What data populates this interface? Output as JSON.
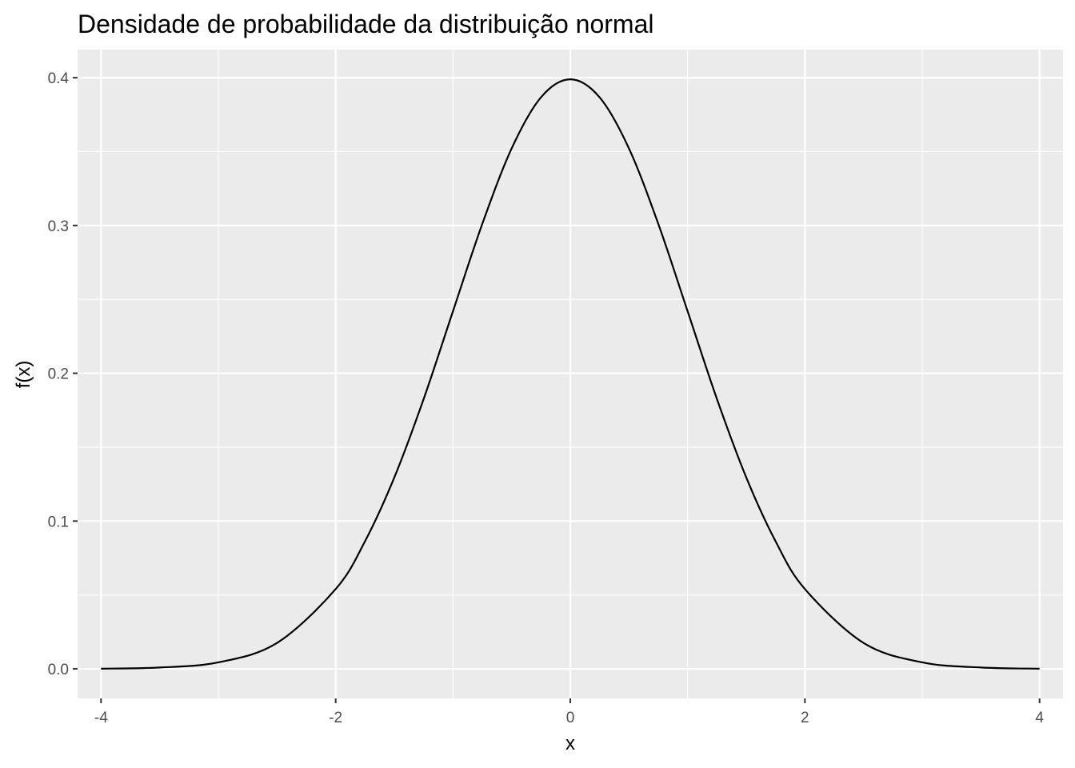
{
  "chart_data": {
    "type": "line",
    "title": "Densidade de probabilidade da distribuição normal",
    "xlabel": "x",
    "ylabel": "f(x)",
    "xlim": [
      -4.2,
      4.2
    ],
    "ylim": [
      -0.02,
      0.419
    ],
    "x_ticks": [
      -4,
      -2,
      0,
      2,
      4
    ],
    "x_tick_labels": [
      "-4",
      "-2",
      "0",
      "2",
      "4"
    ],
    "y_ticks": [
      0.0,
      0.1,
      0.2,
      0.3,
      0.4
    ],
    "y_tick_labels": [
      "0.0",
      "0.1",
      "0.2",
      "0.3",
      "0.4"
    ],
    "grid": true,
    "background": "#ebebeb",
    "grid_color": "#ffffff",
    "line_color": "#000000",
    "series": [
      {
        "x": [
          -4.0,
          -3.5,
          -3.0,
          -2.5,
          -2.0,
          -1.75,
          -1.5,
          -1.25,
          -1.0,
          -0.75,
          -0.5,
          -0.25,
          0.0,
          0.25,
          0.5,
          0.75,
          1.0,
          1.25,
          1.5,
          1.75,
          2.0,
          2.5,
          3.0,
          3.5,
          4.0
        ],
        "y": [
          0.0001,
          0.0009,
          0.0044,
          0.0175,
          0.054,
          0.0863,
          0.1295,
          0.1826,
          0.242,
          0.3011,
          0.3521,
          0.3867,
          0.3989,
          0.3867,
          0.3521,
          0.3011,
          0.242,
          0.1826,
          0.1295,
          0.0863,
          0.054,
          0.0175,
          0.0044,
          0.0009,
          0.0001
        ]
      }
    ]
  }
}
